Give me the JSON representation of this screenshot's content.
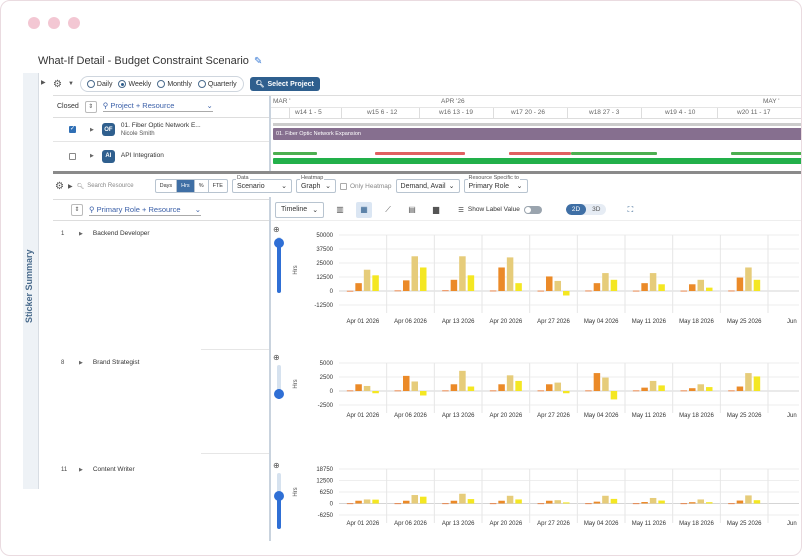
{
  "window": {
    "title": "What-If Detail - Budget Constraint Scenario"
  },
  "sidebar": {
    "label": "Sticker Summary"
  },
  "toolbar": {
    "radios": [
      {
        "label": "Daily",
        "selected": false
      },
      {
        "label": "Weekly",
        "selected": true
      },
      {
        "label": "Monthly",
        "selected": false
      },
      {
        "label": "Quarterly",
        "selected": false
      }
    ],
    "select_project": "Select Project"
  },
  "upper": {
    "closed_label": "Closed",
    "group_by": "Project + Resource",
    "months": [
      "MAR '",
      "APR '26",
      "MAY '"
    ],
    "weeks": [
      "w14  1 - 5",
      "w15  6 - 12",
      "w16  13 - 19",
      "w17  20 - 26",
      "w18  27 - 3",
      "w19  4 - 10",
      "w20  11 - 17"
    ],
    "rows": [
      {
        "avatar": "OF",
        "name": "01. Fiber Optic Network E...",
        "sub": "Nicole Smith",
        "checked": true
      },
      {
        "avatar": "AI",
        "name": "API Integration",
        "sub": "",
        "checked": false
      }
    ],
    "gantt_bar": "01. Fiber Optic Network Expansion"
  },
  "lower_toolbar": {
    "search_placeholder": "Search Resource",
    "units": [
      {
        "label": "Days",
        "on": false
      },
      {
        "label": "Hrs",
        "on": true
      },
      {
        "label": "%",
        "on": false
      },
      {
        "label": "FTE",
        "on": false
      }
    ],
    "data_legend": "Data",
    "data_value": "Scenario",
    "heatmap_legend": "Heatmap",
    "heatmap_value": "Graph",
    "only_heatmap": "Only Heatmap",
    "demand_value": "Demand, Avail",
    "resource_specific_legend": "Resource Specific to",
    "resource_specific_value": "Primary Role"
  },
  "lower": {
    "group_by": "Primary Role + Resource",
    "view_mode": "Timeline",
    "show_label_value": "Show Label Value",
    "mode_2d": "2D",
    "mode_3d": "3D"
  },
  "resources": [
    {
      "num": "1",
      "name": "Backend Developer"
    },
    {
      "num": "8",
      "name": "Brand Strategist"
    },
    {
      "num": "11",
      "name": "Content Writer"
    }
  ],
  "chart_data": [
    {
      "type": "bar",
      "ylabel": "Hrs",
      "ylim": [
        -12500,
        50000
      ],
      "yticks": [
        "50000",
        "37500",
        "25000",
        "12500",
        "0",
        "-12500"
      ],
      "categories": [
        "Apr 01 2026",
        "Apr 06 2026",
        "Apr 13 2026",
        "Apr 20 2026",
        "Apr 27 2026",
        "May 04 2026",
        "May 11 2026",
        "May 18 2026",
        "May 25 2026",
        "Jun"
      ],
      "series": [
        {
          "values": [
            200,
            500,
            600,
            400,
            300,
            400,
            300,
            300,
            400,
            0
          ]
        },
        {
          "values": [
            7000,
            9500,
            10000,
            21000,
            13000,
            7000,
            7000,
            6000,
            12000,
            0
          ]
        },
        {
          "values": [
            19000,
            31000,
            31000,
            30000,
            9000,
            16000,
            16000,
            10000,
            21000,
            0
          ]
        },
        {
          "values": [
            14000,
            21000,
            14000,
            7000,
            -4000,
            10000,
            6000,
            3000,
            10000,
            0
          ]
        }
      ]
    },
    {
      "type": "bar",
      "ylabel": "Hrs",
      "ylim": [
        -2500,
        5000
      ],
      "yticks": [
        "5000",
        "2500",
        "0",
        "-2500"
      ],
      "categories": [
        "Apr 01 2026",
        "Apr 06 2026",
        "Apr 13 2026",
        "Apr 20 2026",
        "Apr 27 2026",
        "May 04 2026",
        "May 11 2026",
        "May 18 2026",
        "May 25 2026",
        "Jun"
      ],
      "series": [
        {
          "values": [
            100,
            100,
            100,
            100,
            100,
            100,
            100,
            100,
            100,
            0
          ]
        },
        {
          "values": [
            1200,
            2700,
            1200,
            1200,
            1200,
            3200,
            600,
            500,
            800,
            0
          ]
        },
        {
          "values": [
            900,
            1700,
            3600,
            2800,
            1500,
            2400,
            1800,
            1200,
            3200,
            0
          ]
        },
        {
          "values": [
            -400,
            -800,
            800,
            1800,
            -400,
            -1500,
            1000,
            700,
            2600,
            0
          ]
        }
      ]
    },
    {
      "type": "bar",
      "ylabel": "Hrs",
      "ylim": [
        -6250,
        18750
      ],
      "yticks": [
        "18750",
        "12500",
        "6250",
        "0",
        "-6250"
      ],
      "categories": [
        "Apr 01 2026",
        "Apr 06 2026",
        "Apr 13 2026",
        "Apr 20 2026",
        "Apr 27 2026",
        "May 04 2026",
        "May 11 2026",
        "May 18 2026",
        "May 25 2026",
        "Jun"
      ],
      "series": [
        {
          "values": [
            100,
            100,
            100,
            100,
            100,
            100,
            100,
            100,
            100,
            0
          ]
        },
        {
          "values": [
            1500,
            1500,
            1500,
            1500,
            1500,
            1000,
            800,
            700,
            1600,
            0
          ]
        },
        {
          "values": [
            2200,
            4600,
            5300,
            4200,
            1800,
            4200,
            3000,
            2200,
            4400,
            0
          ]
        },
        {
          "values": [
            2100,
            3700,
            2400,
            2200,
            600,
            2500,
            1600,
            700,
            1800,
            0
          ]
        }
      ]
    }
  ],
  "colors": {
    "s0": "#e8702a",
    "s1": "#eb8a28",
    "s2": "#e6cc7a",
    "s3": "#f4e722",
    "gantt": "#866f8f",
    "green": "#4caf50",
    "red": "#e06060"
  }
}
